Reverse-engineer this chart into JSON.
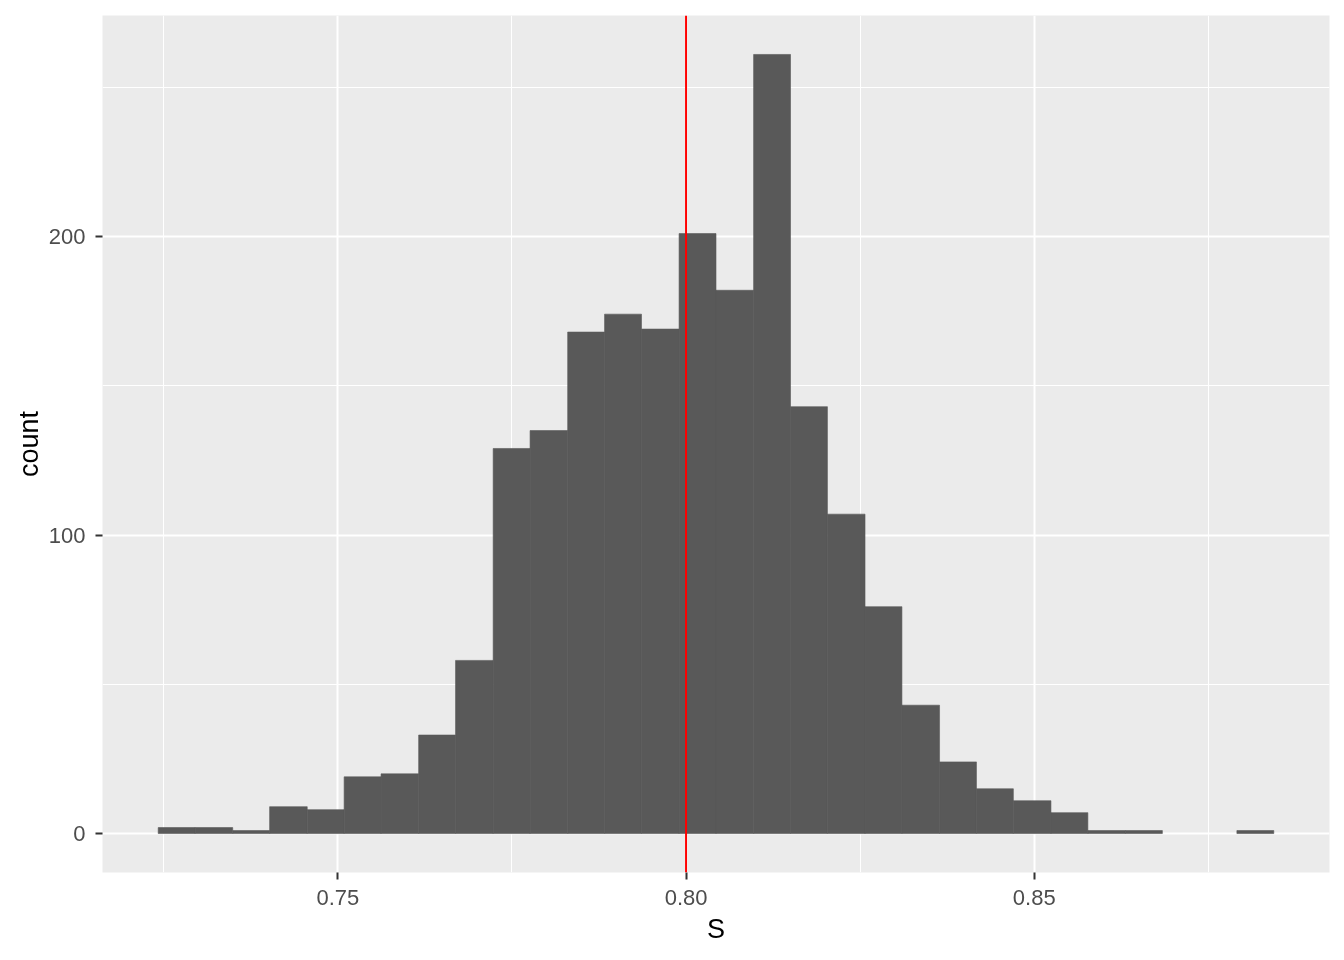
{
  "chart_data": {
    "type": "histogram",
    "xlabel": "S",
    "ylabel": "count",
    "bins": [
      0.7242,
      0.7295,
      0.7349,
      0.7402,
      0.7456,
      0.7509,
      0.7562,
      0.7616,
      0.7669,
      0.7723,
      0.7776,
      0.783,
      0.7883,
      0.7936,
      0.799,
      0.8043,
      0.8097,
      0.815,
      0.8203,
      0.8257,
      0.831,
      0.8364,
      0.8417,
      0.847,
      0.8524,
      0.8577,
      0.8631,
      0.8684,
      0.8791,
      0.8844
    ],
    "values": [
      2,
      2,
      1,
      9,
      8,
      19,
      20,
      33,
      58,
      129,
      135,
      168,
      174,
      169,
      201,
      182,
      261,
      143,
      107,
      76,
      43,
      24,
      15,
      11,
      7,
      1,
      1,
      0,
      1
    ],
    "color": "#595959",
    "xlim": [
      0.7162,
      0.8924
    ],
    "ylim": [
      -13.05,
      274.05
    ],
    "xticks": [
      0.75,
      {
        "value": 0.8,
        "label": "0.80"
      },
      0.85
    ],
    "yticks": [
      0,
      100,
      200
    ],
    "grid": true,
    "ref_lines": [
      {
        "axis": "x",
        "value": 0.8,
        "color": "#ff0000"
      }
    ]
  }
}
